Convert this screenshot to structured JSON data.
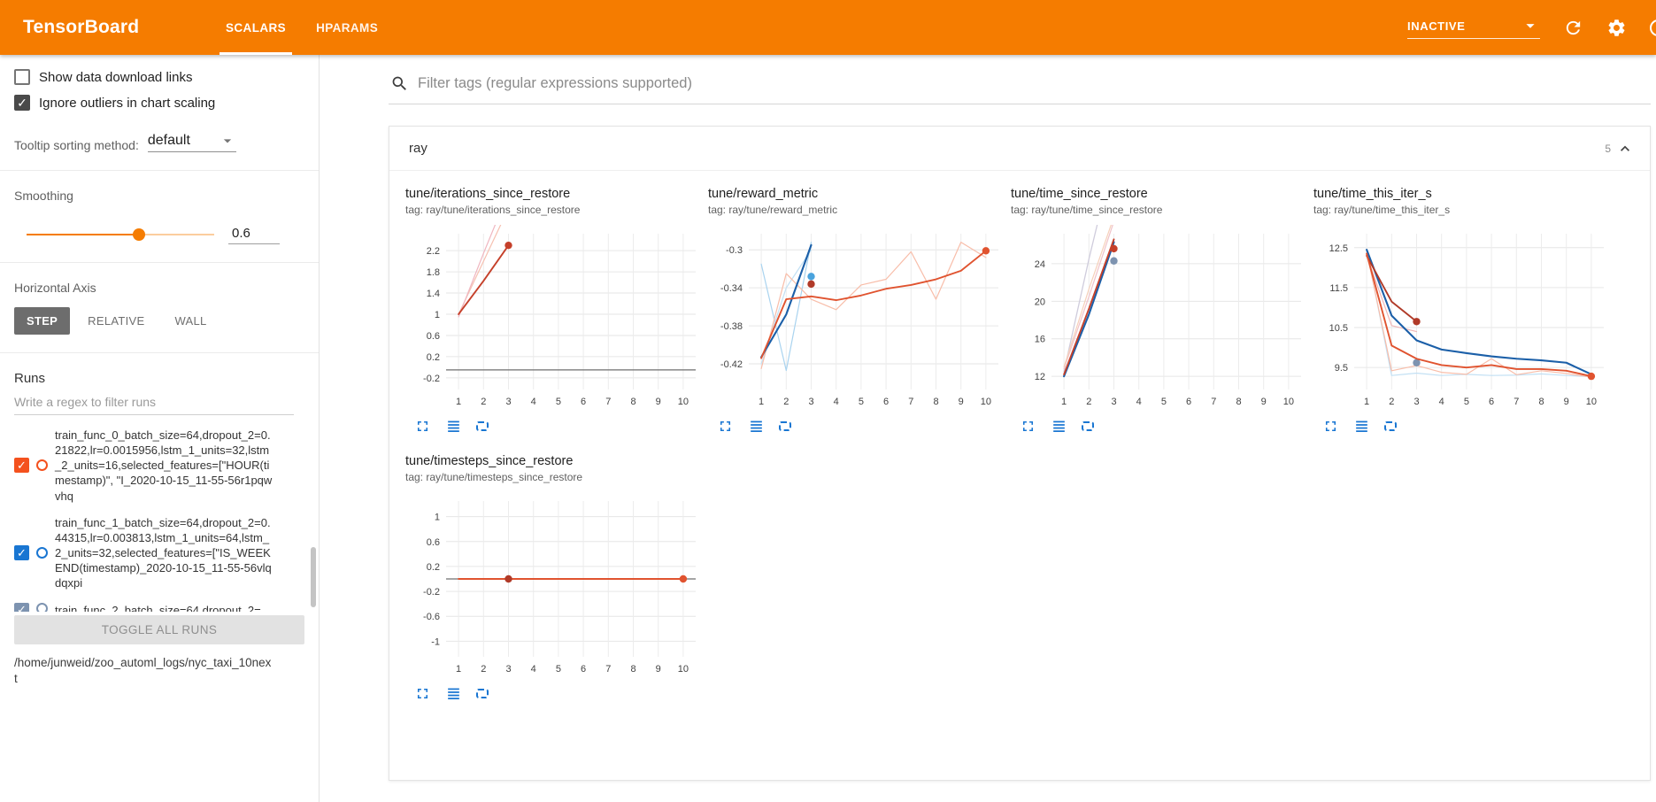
{
  "header": {
    "title": "TensorBoard",
    "tabs": [
      "SCALARS",
      "HPARAMS"
    ],
    "status": "INACTIVE"
  },
  "sidebar": {
    "show_data_label": "Show data download links",
    "ignore_outliers_label": "Ignore outliers in chart scaling",
    "tooltip_label": "Tooltip sorting method:",
    "tooltip_value": "default",
    "smoothing_label": "Smoothing",
    "smoothing_value": "0.6",
    "haxis_label": "Horizontal Axis",
    "haxis_options": [
      "STEP",
      "RELATIVE",
      "WALL"
    ],
    "runs_label": "Runs",
    "runs_filter_placeholder": "Write a regex to filter runs",
    "runs": [
      {
        "text": "train_func_0_batch_size=64,dropout_2=0.21822,lr=0.0015956,lstm_1_units=32,lstm_2_units=16,selected_features=[\"HOUR(timestamp)\", \"I_2020-10-15_11-55-56r1pqwvhq",
        "checked": true,
        "color": "#f4511e",
        "clipped": false
      },
      {
        "text": "train_func_1_batch_size=64,dropout_2=0.44315,lr=0.003813,lstm_1_units=64,lstm_2_units=32,selected_features=[\"IS_WEEKEND(timestamp)_2020-10-15_11-55-56vlqdqxpi",
        "checked": true,
        "color": "#1976d2",
        "clipped": false
      },
      {
        "text": "train_func_2_batch_size=64,dropout_2=",
        "checked": true,
        "color": "#7d93b0",
        "clipped": true
      }
    ],
    "toggle_all_label": "TOGGLE ALL RUNS",
    "log_path": "/home/junweid/zoo_automl_logs/nyc_taxi_10next"
  },
  "main": {
    "filter_placeholder": "Filter tags (regular expressions supported)",
    "section_title": "ray",
    "section_count": "5",
    "chart_action_icons": [
      "expand-icon",
      "data-table-icon",
      "fit-domain-icon"
    ]
  },
  "chart_data": [
    {
      "type": "line",
      "title": "tune/iterations_since_restore",
      "tag": "tag: ray/tune/iterations_since_restore",
      "xlim": [
        0.5,
        10.5
      ],
      "ylim": [
        -0.42,
        2.52
      ],
      "xticks": [
        1,
        2,
        3,
        4,
        5,
        6,
        7,
        8,
        9,
        10
      ],
      "yticks": [
        -0.2,
        0.2,
        0.6,
        1,
        1.4,
        1.8,
        2.2
      ],
      "series": [
        {
          "name": "raw-run1",
          "color": "#f6c0b0",
          "width": 1.2,
          "x": [
            1,
            2,
            3,
            4
          ],
          "y": [
            1,
            2,
            3,
            4
          ]
        },
        {
          "name": "raw-run0",
          "color": "#f0b6c0",
          "width": 1.2,
          "x": [
            1,
            2,
            3
          ],
          "y": [
            0.95,
            2.15,
            3.3
          ]
        },
        {
          "name": "flat-run",
          "color": "#6f6f6f",
          "width": 1.3,
          "x": [
            0.5,
            10.5
          ],
          "y": [
            -0.05,
            -0.05
          ]
        },
        {
          "name": "smoothed-run0",
          "color": "#c5402a",
          "width": 1.9,
          "x": [
            1,
            2,
            3
          ],
          "y": [
            1,
            1.63,
            2.3
          ],
          "dots": [
            [
              3,
              2.3
            ]
          ]
        }
      ]
    },
    {
      "type": "line",
      "title": "tune/reward_metric",
      "tag": "tag: ray/tune/reward_metric",
      "xlim": [
        0.5,
        10.5
      ],
      "ylim": [
        -0.447,
        -0.283
      ],
      "xticks": [
        1,
        2,
        3,
        4,
        5,
        6,
        7,
        8,
        9,
        10
      ],
      "yticks": [
        -0.42,
        -0.38,
        -0.34,
        -0.3
      ],
      "series": [
        {
          "name": "raw-blue-a",
          "color": "#a9d3ef",
          "width": 1.2,
          "x": [
            1,
            2,
            3
          ],
          "y": [
            -0.315,
            -0.427,
            -0.292
          ]
        },
        {
          "name": "raw-blue-b",
          "color": "#c2e0f4",
          "width": 1.2,
          "x": [
            1,
            2,
            3
          ],
          "y": [
            -0.42,
            -0.34,
            -0.3
          ]
        },
        {
          "name": "raw-orange",
          "color": "#f8bda9",
          "width": 1.2,
          "x": [
            1,
            2,
            3,
            4,
            5,
            6,
            7,
            8,
            9,
            10
          ],
          "y": [
            -0.425,
            -0.325,
            -0.352,
            -0.363,
            -0.337,
            -0.331,
            -0.302,
            -0.352,
            -0.292,
            -0.308
          ]
        },
        {
          "name": "smoothed-blue",
          "color": "#1b5fa8",
          "width": 2.1,
          "x": [
            1,
            2,
            3
          ],
          "y": [
            -0.413,
            -0.368,
            -0.295
          ]
        },
        {
          "name": "dot-lightblue",
          "color": "#4aa3dd",
          "width": 0,
          "x": [],
          "y": [],
          "dots": [
            [
              3,
              -0.328
            ]
          ]
        },
        {
          "name": "smoothed-orange",
          "color": "#e0532f",
          "width": 1.9,
          "x": [
            1,
            2,
            3,
            4,
            5,
            6,
            7,
            8,
            9,
            10
          ],
          "y": [
            -0.414,
            -0.352,
            -0.349,
            -0.353,
            -0.348,
            -0.341,
            -0.337,
            -0.331,
            -0.322,
            -0.301
          ],
          "dots": [
            [
              10,
              -0.301
            ]
          ]
        },
        {
          "name": "dot-darkred",
          "color": "#b03a28",
          "width": 0,
          "x": [],
          "y": [],
          "dots": [
            [
              3,
              -0.336
            ]
          ]
        }
      ]
    },
    {
      "type": "line",
      "title": "tune/time_since_restore",
      "tag": "tag: ray/tune/time_since_restore",
      "xlim": [
        0.5,
        10.5
      ],
      "ylim": [
        10.6,
        27.2
      ],
      "xticks": [
        1,
        2,
        3,
        4,
        5,
        6,
        7,
        8,
        9,
        10
      ],
      "yticks": [
        12,
        16,
        20,
        24
      ],
      "series": [
        {
          "name": "raw-gray",
          "color": "#cfccdc",
          "width": 1.3,
          "x": [
            1,
            2,
            2.5
          ],
          "y": [
            12.5,
            24.5,
            30
          ]
        },
        {
          "name": "raw-pink",
          "color": "#f0c2c8",
          "width": 1.2,
          "x": [
            1,
            2,
            3
          ],
          "y": [
            12.8,
            20.5,
            28.5
          ]
        },
        {
          "name": "raw-peach",
          "color": "#f6d0ba",
          "width": 1.2,
          "x": [
            1,
            2,
            3
          ],
          "y": [
            13,
            21.3,
            29
          ]
        },
        {
          "name": "smoothed-blue",
          "color": "#1b5fa8",
          "width": 2.1,
          "x": [
            1,
            2,
            3
          ],
          "y": [
            12.0,
            18.6,
            26.3
          ]
        },
        {
          "name": "dot-gray",
          "color": "#7d93b0",
          "width": 0,
          "x": [],
          "y": [],
          "dots": [
            [
              3,
              24.3
            ]
          ]
        },
        {
          "name": "smoothed-red",
          "color": "#c5402a",
          "width": 1.9,
          "x": [
            1,
            2,
            3
          ],
          "y": [
            12.2,
            19.2,
            26.6
          ],
          "dots": [
            [
              3,
              25.6
            ]
          ]
        }
      ]
    },
    {
      "type": "line",
      "title": "tune/time_this_iter_s",
      "tag": "tag: ray/tune/time_this_iter_s",
      "xlim": [
        0.5,
        10.5
      ],
      "ylim": [
        8.95,
        12.85
      ],
      "xticks": [
        1,
        2,
        3,
        4,
        5,
        6,
        7,
        8,
        9,
        10
      ],
      "yticks": [
        9.5,
        10.5,
        11.5,
        12.5
      ],
      "series": [
        {
          "name": "raw-blue",
          "color": "#c2e0f4",
          "width": 1.2,
          "x": [
            1,
            2,
            3,
            4,
            5,
            6,
            7,
            8,
            9,
            10
          ],
          "y": [
            12.45,
            9.3,
            9.36,
            9.3,
            9.33,
            9.3,
            9.31,
            9.34,
            9.3,
            9.27
          ]
        },
        {
          "name": "raw-orange",
          "color": "#f8bda9",
          "width": 1.2,
          "x": [
            1,
            2,
            3,
            4,
            5,
            6,
            7,
            8,
            9,
            10
          ],
          "y": [
            12.4,
            9.42,
            9.55,
            9.38,
            9.33,
            9.72,
            9.32,
            9.42,
            9.35,
            9.26
          ]
        },
        {
          "name": "raw-red",
          "color": "#f0b6b6",
          "width": 1.2,
          "x": [
            1,
            2,
            3
          ],
          "y": [
            12.3,
            10.55,
            10.4
          ]
        },
        {
          "name": "smoothed-blue",
          "color": "#1b5fa8",
          "width": 2.1,
          "x": [
            1,
            2,
            3,
            4,
            5,
            6,
            7,
            8,
            9,
            10
          ],
          "y": [
            12.45,
            10.8,
            10.18,
            9.95,
            9.86,
            9.78,
            9.72,
            9.68,
            9.62,
            9.33
          ]
        },
        {
          "name": "dot-gray",
          "color": "#7d93b0",
          "width": 0,
          "x": [],
          "y": [],
          "dots": [
            [
              3,
              9.62
            ]
          ]
        },
        {
          "name": "smoothed-red",
          "color": "#b03a28",
          "width": 1.9,
          "x": [
            1,
            2,
            3
          ],
          "y": [
            12.3,
            11.15,
            10.65
          ],
          "dots": [
            [
              3,
              10.65
            ]
          ]
        },
        {
          "name": "smoothed-orange",
          "color": "#e0532f",
          "width": 1.9,
          "x": [
            1,
            2,
            3,
            4,
            5,
            6,
            7,
            8,
            9,
            10
          ],
          "y": [
            12.35,
            10.05,
            9.72,
            9.56,
            9.5,
            9.56,
            9.46,
            9.46,
            9.42,
            9.28
          ],
          "dots": [
            [
              10,
              9.28
            ]
          ]
        }
      ]
    },
    {
      "type": "line",
      "title": "tune/timesteps_since_restore",
      "tag": "tag: ray/tune/timesteps_since_restore",
      "xlim": [
        0.5,
        10.5
      ],
      "ylim": [
        -1.25,
        1.25
      ],
      "xticks": [
        1,
        2,
        3,
        4,
        5,
        6,
        7,
        8,
        9,
        10
      ],
      "yticks": [
        -1,
        -0.6,
        -0.2,
        0.2,
        0.6,
        1
      ],
      "series": [
        {
          "name": "flat-gray",
          "color": "#6f6f6f",
          "width": 1.3,
          "x": [
            0.5,
            10.5
          ],
          "y": [
            0,
            0
          ]
        },
        {
          "name": "flat-orange",
          "color": "#e0532f",
          "width": 1.9,
          "x": [
            1,
            10
          ],
          "y": [
            0,
            0
          ],
          "dots": [
            [
              10,
              0
            ]
          ]
        },
        {
          "name": "dot-darkred",
          "color": "#b03a28",
          "width": 0,
          "x": [],
          "y": [],
          "dots": [
            [
              3,
              0
            ]
          ]
        }
      ]
    }
  ]
}
